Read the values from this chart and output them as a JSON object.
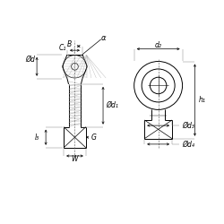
{
  "bg_color": "#ffffff",
  "lc": "#000000",
  "lw": 0.7,
  "fig_w": 2.5,
  "fig_h": 2.5,
  "dpi": 100,
  "labels": {
    "alpha": "α",
    "B": "B",
    "C1": "C₁",
    "Od": "Ød",
    "Od1": "Ød₁",
    "d2": "d₂",
    "Od3": "Ød₃",
    "Od4": "Ød₄",
    "h1": "h₁",
    "l3": "l₃",
    "G": "G",
    "W": "W"
  }
}
